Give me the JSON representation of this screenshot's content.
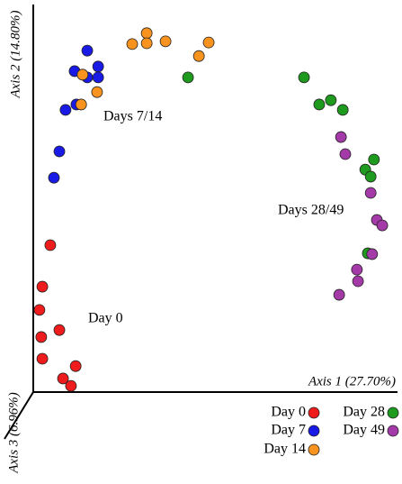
{
  "chart_data": {
    "type": "scatter",
    "x_label": "Axis 1 (27.70%)",
    "y_label": "Axis 2 (14.80%)",
    "z_label": "Axis 3 (6.96%)",
    "annotations": [
      "Days 7/14",
      "Days 28/49",
      "Day 0"
    ],
    "xlim": [
      0,
      100
    ],
    "ylim": [
      0,
      100
    ],
    "series": [
      {
        "name": "Day 0",
        "color": "#ee1c1c",
        "x": [
          4.7,
          2.5,
          1.7,
          7.2,
          2.2,
          2.5,
          11.7,
          8.2,
          10.4
        ],
        "values": [
          37.9,
          27.2,
          21.2,
          16.0,
          14.2,
          8.6,
          6.7,
          3.5,
          1.6
        ]
      },
      {
        "name": "Day 7",
        "color": "#1a1ae6",
        "x": [
          14.9,
          17.9,
          11.4,
          14.9,
          17.9,
          11.9,
          8.9,
          7.2,
          5.7
        ],
        "values": [
          88.1,
          84.0,
          82.8,
          81.2,
          81.2,
          74.2,
          72.8,
          62.1,
          55.3
        ]
      },
      {
        "name": "Day 14",
        "color": "#f7931e",
        "x": [
          27.3,
          31.3,
          31.3,
          36.5,
          48.4,
          45.7,
          13.6,
          17.6,
          13.2
        ],
        "values": [
          89.8,
          92.6,
          90.0,
          90.5,
          90.2,
          86.7,
          81.9,
          77.4,
          74.2
        ]
      },
      {
        "name": "Day 28",
        "color": "#1e9a1e",
        "x": [
          42.7,
          74.7,
          78.9,
          82.1,
          85.4,
          94.0,
          91.6,
          93.1,
          92.3
        ],
        "values": [
          81.2,
          81.2,
          74.2,
          75.3,
          72.8,
          60.0,
          57.4,
          55.6,
          35.8
        ]
      },
      {
        "name": "Day 49",
        "color": "#a33aa8",
        "x": [
          84.9,
          86.1,
          93.1,
          94.8,
          96.3,
          93.5,
          89.3,
          89.6,
          84.4
        ],
        "values": [
          65.8,
          61.4,
          51.4,
          44.4,
          43.0,
          35.6,
          31.6,
          28.6,
          25.1
        ]
      }
    ]
  }
}
